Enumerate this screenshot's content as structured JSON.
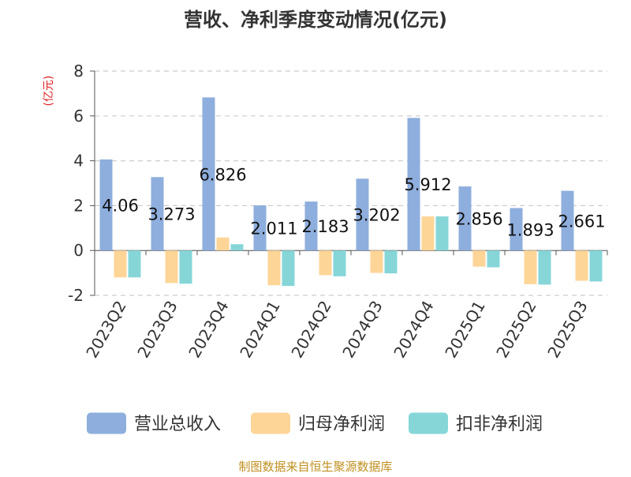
{
  "chart_data": {
    "type": "bar",
    "title": "营收、净利季度变动情况(亿元)",
    "ylabel": "(亿元)",
    "xlabel": "",
    "ylim": [
      -2,
      8
    ],
    "yticks": [
      -2,
      0,
      2,
      4,
      6,
      8
    ],
    "grid": true,
    "legend_position": "bottom",
    "categories": [
      "2023Q2",
      "2023Q3",
      "2023Q4",
      "2024Q1",
      "2024Q2",
      "2024Q3",
      "2024Q4",
      "2025Q1",
      "2025Q2",
      "2025Q3"
    ],
    "series": [
      {
        "name": "营业总收入",
        "color": "#8eaedd",
        "values": [
          4.06,
          3.273,
          6.826,
          2.011,
          2.183,
          3.202,
          5.912,
          2.856,
          1.893,
          2.661
        ],
        "data_labels": [
          "4.06",
          "3.273",
          "6.826",
          "2.011",
          "2.183",
          "3.202",
          "5.912",
          "2.856",
          "1.893",
          "2.661"
        ]
      },
      {
        "name": "归母净利润",
        "color": "#fdd597",
        "values": [
          -1.2,
          -1.45,
          0.58,
          -1.55,
          -1.1,
          -1.0,
          1.52,
          -0.72,
          -1.5,
          -1.35
        ]
      },
      {
        "name": "扣非净利润",
        "color": "#86d6d8",
        "values": [
          -1.2,
          -1.48,
          0.28,
          -1.58,
          -1.15,
          -1.02,
          1.52,
          -0.75,
          -1.52,
          -1.38
        ]
      }
    ],
    "source": "制图数据来自恒生聚源数据库",
    "colors": {
      "title": "#333333",
      "ylabel": "#e02020",
      "axis": "#555555",
      "grid": "#cccccc",
      "source": "#c09020"
    }
  }
}
